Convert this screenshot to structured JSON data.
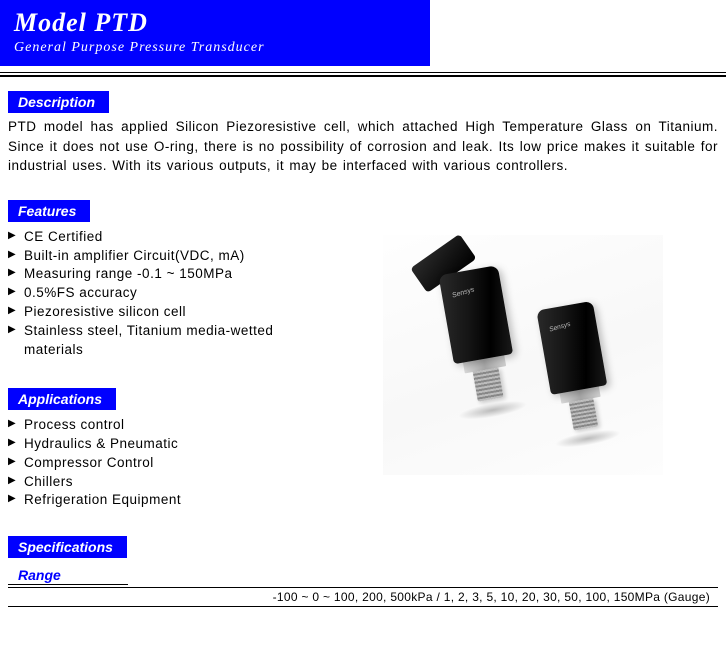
{
  "colors": {
    "brand_blue": "#0000ff",
    "text": "#000000",
    "background": "#ffffff"
  },
  "header": {
    "title": "Model PTD",
    "subtitle": "General Purpose Pressure Transducer"
  },
  "description": {
    "label": "Description",
    "text": "PTD model has applied Silicon Piezoresistive cell, which attached High Temperature Glass on Titanium. Since it does not use O-ring, there is no possibility of corrosion and leak. Its low price makes it suitable for industrial uses. With its various outputs, it may be interfaced with various controllers."
  },
  "features": {
    "label": "Features",
    "items": [
      "CE Certified",
      "Built-in amplifier Circuit(VDC, mA)",
      "Measuring range -0.1 ~ 150MPa",
      "0.5%FS accuracy",
      "Piezoresistive silicon cell",
      "Stainless steel, Titanium media-wetted materials"
    ]
  },
  "applications": {
    "label": "Applications",
    "items": [
      "Process control",
      "Hydraulics & Pneumatic",
      "Compressor Control",
      "Chillers",
      "Refrigeration Equipment"
    ]
  },
  "specifications": {
    "label": "Specifications",
    "range_label": "Range",
    "range_value": "-100 ~ 0 ~ 100, 200, 500kPa /  1, 2, 3, 5, 10, 20, 30, 50, 100, 150MPa (Gauge)"
  },
  "product_image": {
    "alt": "Two black cylindrical pressure transducers with metallic threaded fittings",
    "brand_text": "Sensys"
  }
}
